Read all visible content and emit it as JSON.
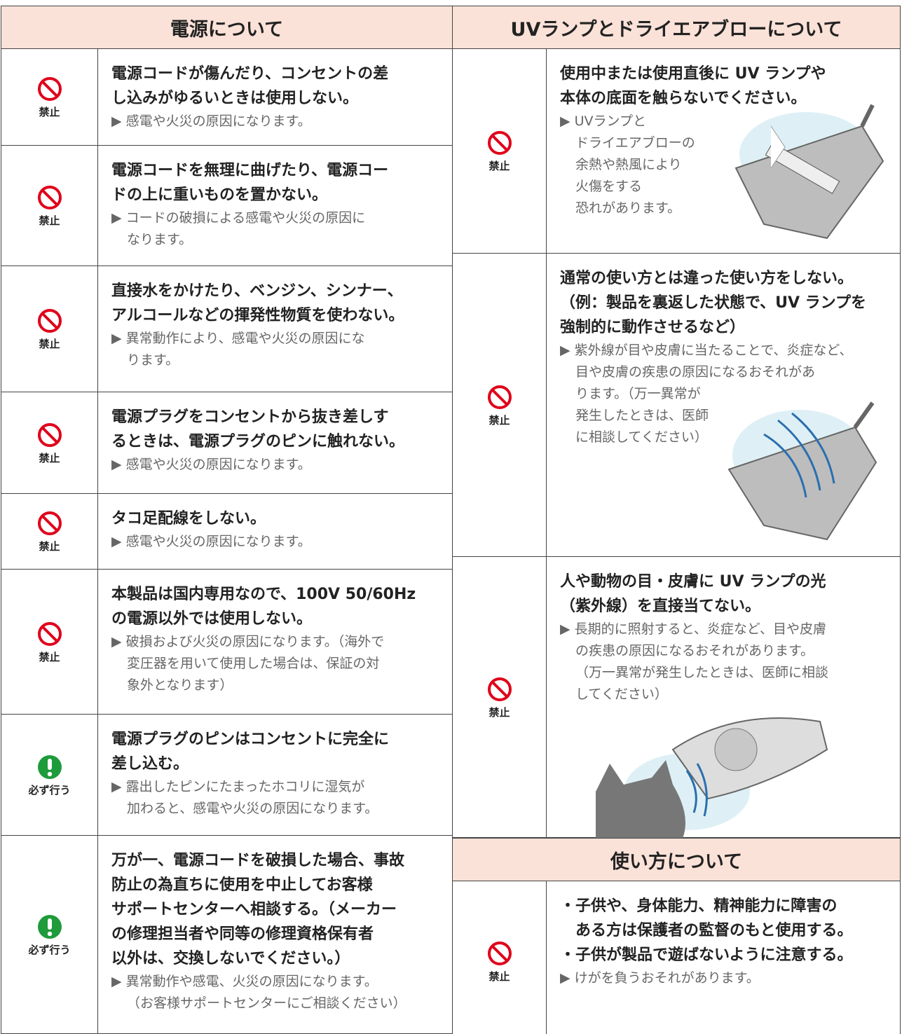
{
  "sections": [
    {
      "title": "電源について",
      "items": [
        {
          "icon": "禁止",
          "title": [
            "電源コードが傷んだり、コンセントの差",
            "し込みがゆるいときは使用しない。"
          ],
          "note": [
            "▶ 感電や火災の原因になります。"
          ]
        },
        {
          "icon": "禁止",
          "title": [
            "電源コードを無理に曲げたり、電源コー",
            "ドの上に重いものを置かない。"
          ],
          "note": [
            "▶ コードの破損による感電や火災の原因に",
            "なります。"
          ]
        },
        {
          "icon": "禁止",
          "title": [
            "直接水をかけたり、ベンジン、シンナー、",
            "アルコールなどの揮発性物質を使わない。"
          ],
          "note": [
            "▶ 異常動作により、感電や火災の原因にな",
            "ります。"
          ]
        },
        {
          "icon": "禁止",
          "title": [
            "電源プラグをコンセントから抜き差しす",
            "るときは、電源プラグのピンに触れない。"
          ],
          "note": [
            "▶ 感電や火災の原因になります。"
          ]
        },
        {
          "icon": "禁止",
          "title": [
            "タコ足配線をしない。"
          ],
          "note": [
            "▶ 感電や火災の原因になります。"
          ]
        },
        {
          "icon": "禁止",
          "title": [
            "本製品は国内専用なので、100V 50/60Hz",
            "の電源以外では使用しない。"
          ],
          "note": [
            "▶ 破損および火災の原因になります。（海外で",
            "変圧器を用いて使用した場合は、保証の対",
            "象外となります）"
          ]
        },
        {
          "icon": "必ず行う",
          "title": [
            "電源プラグのピンはコンセントに完全に",
            "差し込む。"
          ],
          "note": [
            "▶ 露出したピンにたまったホコリに湿気が",
            "加わると、感電や火災の原因になります。"
          ]
        },
        {
          "icon": "必ず行う",
          "title": [
            "万が一、電源コードを破損した場合、事故",
            "防止の為直ちに使用を中止してお客様",
            "サポートセンターへ相談する。（メーカー",
            "の修理担当者や同等の修理資格保有者",
            "以外は、交換しないでください。）"
          ],
          "note": [
            "▶ 異常動作や感電、火災の原因になります。",
            "（お客様サポートセンターにご相談ください）"
          ]
        }
      ]
    },
    {
      "title": "UVランプとドライエアブローについて",
      "items": [
        {
          "icon": "禁止",
          "title": [
            "使用中または使用直後に UV ランプや",
            "本体の底面を触らないでください。"
          ],
          "note": [
            "▶ UVランプと",
            "ドライエアブローの",
            "余熱や熱風により",
            "火傷をする",
            "恐れがあります。"
          ]
        },
        {
          "icon": "禁止",
          "title": [
            "通常の使い方とは違った使い方をしない。",
            "（例：製品を裏返した状態で、UV ランプを",
            "強制的に動作させるなど）"
          ],
          "note": [
            "▶ 紫外線が目や皮膚に当たることで、炎症など、",
            "目や皮膚の疾患の原因になるおそれがあ",
            "ります。（万一異常が",
            "発生したときは、医師",
            "に相談してください）"
          ]
        },
        {
          "icon": "禁止",
          "title": [
            "人や動物の目・皮膚に UV ランプの光",
            "（紫外線）を直接当てない。"
          ],
          "note": [
            "▶ 長期的に照射すると、炎症など、目や皮膚",
            "の疾患の原因になるおそれがあります。",
            "（万一異常が発生したときは、医師に相談",
            "してください）"
          ]
        }
      ]
    },
    {
      "title": "使い方について",
      "items": [
        {
          "icon": "禁止",
          "title": [
            "・子供や、身体能力、精神能力に障害の",
            "　ある方は保護者の監督のもと使用する。",
            "・子供が製品で遊ばないように注意する。"
          ],
          "note": [
            "▶ けがを負うおそれがあります。"
          ]
        }
      ]
    }
  ]
}
